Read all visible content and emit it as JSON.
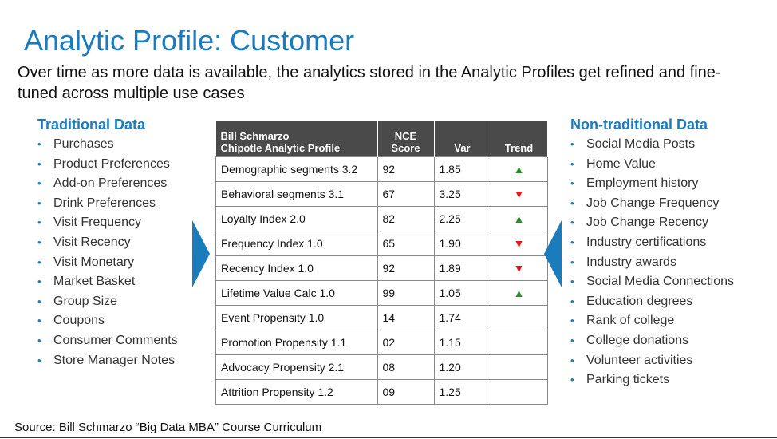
{
  "title": "Analytic Profile: Customer",
  "subtitle": "Over time as more data is available, the analytics stored in the Analytic Profiles get refined and fine-tuned across multiple use cases",
  "traditional": {
    "heading": "Traditional Data",
    "items": [
      "Purchases",
      "Product Preferences",
      "Add-on Preferences",
      "Drink Preferences",
      "Visit Frequency",
      "Visit Recency",
      "Visit Monetary",
      "Market Basket",
      "Group Size",
      "Coupons",
      "Consumer Comments",
      "Store Manager Notes"
    ]
  },
  "nontraditional": {
    "heading": "Non-traditional Data",
    "items": [
      "Social Media Posts",
      "Home Value",
      "Employment history",
      "Job Change Frequency",
      "Job Change Recency",
      "Industry certifications",
      "Industry awards",
      "Social Media Connections",
      "Education degrees",
      "Rank of college",
      "College donations",
      "Volunteer activities",
      "Parking tickets"
    ]
  },
  "table": {
    "header": {
      "name_line1": "Bill Schmarzo",
      "name_line2": "Chipotle Analytic Profile",
      "score_line1": "NCE",
      "score_line2": "Score",
      "var": "Var",
      "trend": "Trend"
    },
    "rows": [
      {
        "name": "Demographic segments 3.2",
        "score": "92",
        "var": "1.85",
        "trend": "up"
      },
      {
        "name": "Behavioral segments 3.1",
        "score": "67",
        "var": "3.25",
        "trend": "down"
      },
      {
        "name": "Loyalty Index 2.0",
        "score": "82",
        "var": "2.25",
        "trend": "up"
      },
      {
        "name": "Frequency Index 1.0",
        "score": "65",
        "var": "1.90",
        "trend": "down"
      },
      {
        "name": "Recency Index 1.0",
        "score": "92",
        "var": "1.89",
        "trend": "down"
      },
      {
        "name": "Lifetime Value Calc 1.0",
        "score": "99",
        "var": "1.05",
        "trend": "up"
      },
      {
        "name": "Event Propensity 1.0",
        "score": "14",
        "var": "1.74",
        "trend": ""
      },
      {
        "name": "Promotion Propensity 1.1",
        "score": "02",
        "var": "1.15",
        "trend": ""
      },
      {
        "name": "Advocacy Propensity 2.1",
        "score": "08",
        "var": "1.20",
        "trend": ""
      },
      {
        "name": "Attrition Propensity 1.2",
        "score": "09",
        "var": "1.25",
        "trend": ""
      }
    ]
  },
  "source": "Source: Bill Schmarzo “Big Data MBA” Course Curriculum",
  "colors": {
    "accent": "#1a7bbd",
    "up": "#2e8b2e",
    "down": "#e01818",
    "header_bg": "#4a4a4a"
  }
}
